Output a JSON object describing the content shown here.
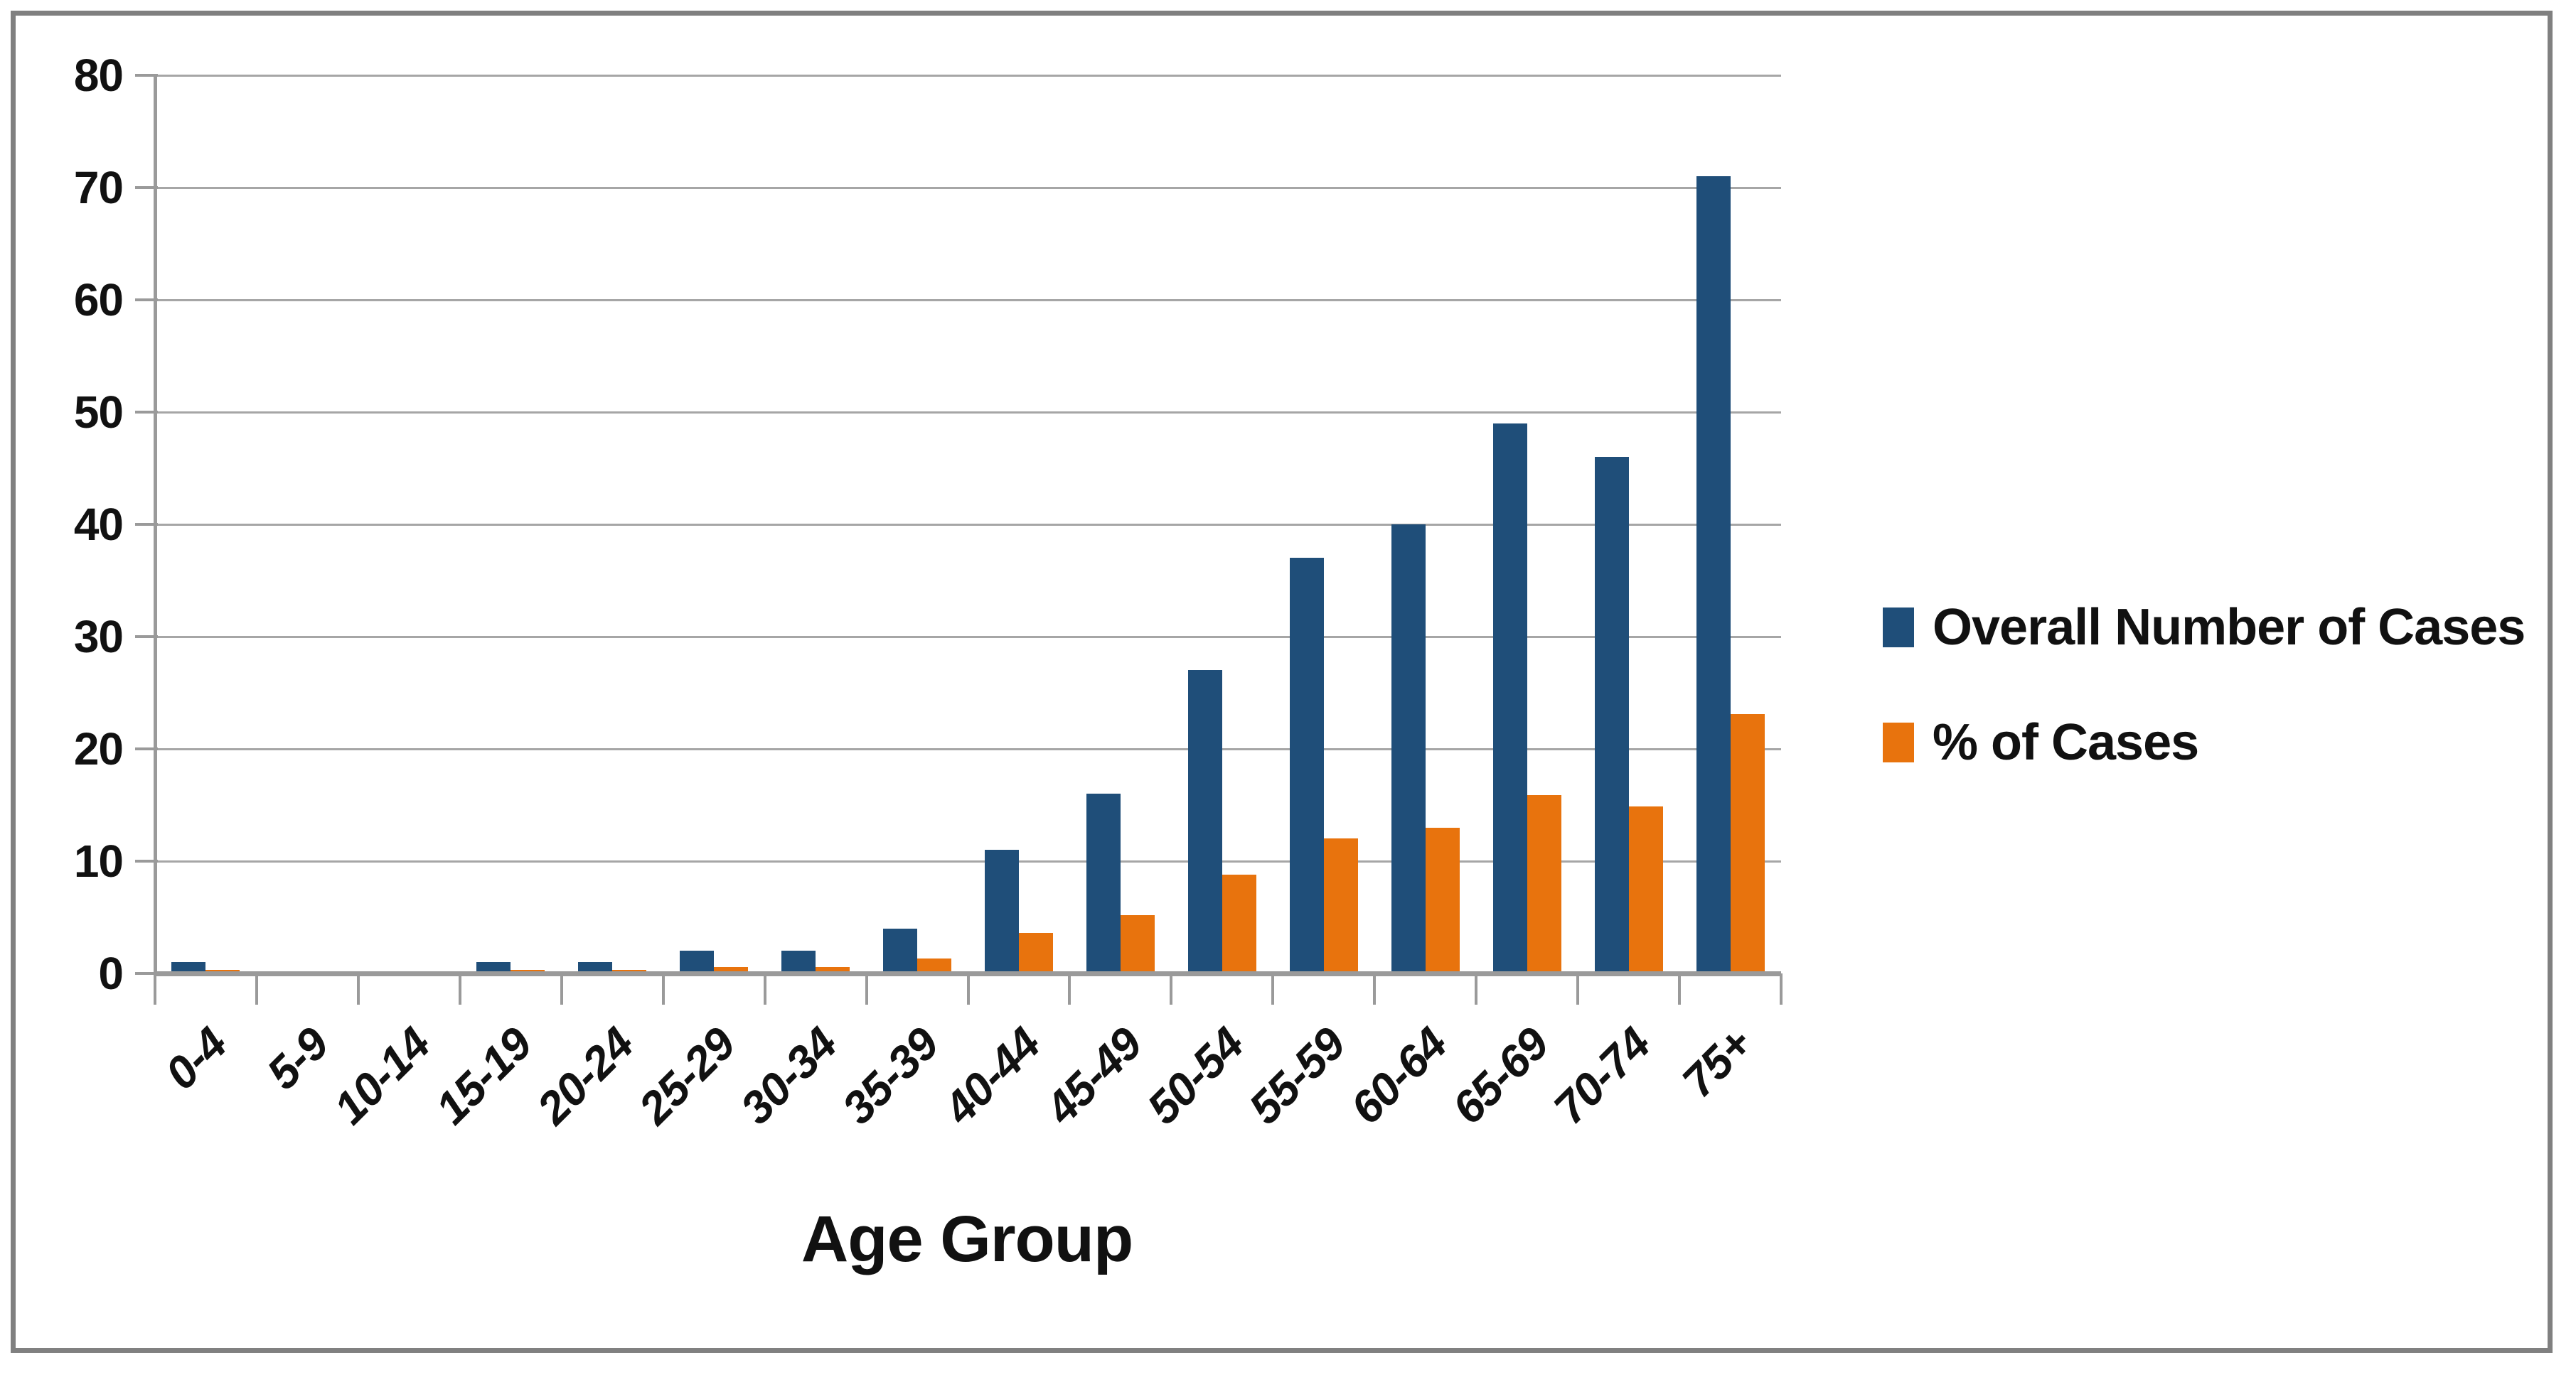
{
  "chart_data": {
    "type": "bar",
    "title": "",
    "categories": [
      "0-4",
      "5-9",
      "10-14",
      "15-19",
      "20-24",
      "25-29",
      "30-34",
      "35-39",
      "40-44",
      "45-49",
      "50-54",
      "55-59",
      "60-64",
      "65-69",
      "70-74",
      "75+"
    ],
    "series": [
      {
        "name": "Overall Number of Cases",
        "color": "#1F4E79",
        "values": [
          1,
          0,
          0,
          1,
          1,
          2,
          2,
          4,
          11,
          16,
          27,
          37,
          40,
          49,
          46,
          71
        ]
      },
      {
        "name": "% of Cases",
        "color": "#E8730D",
        "values": [
          0.3,
          0,
          0,
          0.3,
          0.3,
          0.6,
          0.6,
          1.3,
          3.6,
          5.2,
          8.8,
          12,
          13,
          15.9,
          14.9,
          23.1
        ]
      }
    ],
    "xlabel": "Age Group",
    "ylabel": "",
    "ylim": [
      0,
      80
    ],
    "yticks": [
      0,
      10,
      20,
      30,
      40,
      50,
      60,
      70,
      80
    ],
    "grid": true,
    "legend_position": "right"
  },
  "colors": {
    "gridline": "#A6A6A6",
    "axis": "#9A9A9A",
    "frame_border": "#808080",
    "background": "#FFFFFF",
    "text": "#111111"
  }
}
